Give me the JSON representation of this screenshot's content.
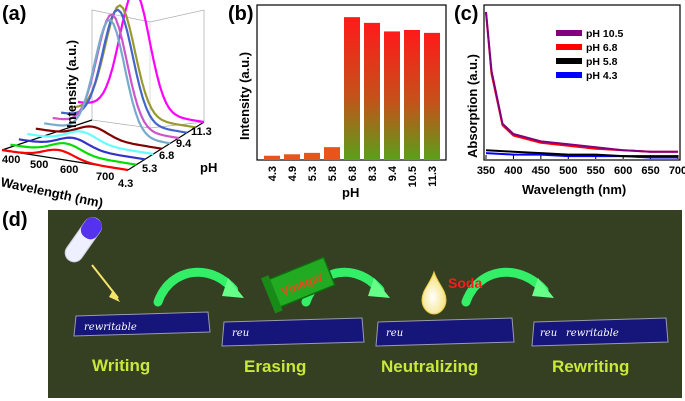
{
  "panels": {
    "a": "(a)",
    "b": "(b)",
    "c": "(c)",
    "d": "(d)"
  },
  "chart_data": [
    {
      "panel": "(a)",
      "type": "line",
      "view": "3d-waterfall",
      "xlabel": "Wavelength (nm)",
      "ylabel": "Intensity (a.u.)",
      "zlabel": "pH",
      "x_ticks": [
        "400",
        "500",
        "600",
        "700"
      ],
      "z_ticks": [
        "4.3",
        "5.3",
        "6.8",
        "9.4",
        "11.3"
      ],
      "series_colors": [
        "#ff00ff",
        "#999933",
        "#4466cc",
        "#cc55cc",
        "#77aacc",
        "#800000",
        "#66ffff",
        "#3333cc",
        "#00dd00",
        "#ff0000"
      ],
      "front_peak_rel": [
        0.1,
        0.1,
        0.09,
        0.09,
        0.08
      ],
      "back_peak_rel": [
        1.0,
        0.96,
        0.98,
        0.99,
        0.99
      ]
    },
    {
      "panel": "(b)",
      "type": "bar",
      "xlabel": "pH",
      "ylabel": "Intensity (a.u.)",
      "categories": [
        "4.3",
        "4.9",
        "5.3",
        "5.8",
        "6.8",
        "8.3",
        "9.4",
        "10.5",
        "11.3"
      ],
      "values": [
        3,
        4,
        5,
        9,
        100,
        96,
        90,
        91,
        89
      ],
      "ylim": [
        0,
        105
      ],
      "colors": {
        "top": "#ff1a1a",
        "bottom": "#5aa01a",
        "low": "#e8541a"
      }
    },
    {
      "panel": "(c)",
      "type": "line",
      "xlabel": "Wavelength (nm)",
      "ylabel": "Absorption (a.u.)",
      "xlim": [
        350,
        700
      ],
      "ylim": [
        0,
        1
      ],
      "x_ticks": [
        "350",
        "400",
        "450",
        "500",
        "550",
        "600",
        "650",
        "700"
      ],
      "legend": "top-right",
      "series": [
        {
          "name": "pH 10.5",
          "color": "#800080",
          "x": [
            350,
            360,
            380,
            400,
            450,
            500,
            550,
            600,
            650,
            700
          ],
          "y": [
            1.0,
            0.6,
            0.24,
            0.17,
            0.12,
            0.1,
            0.08,
            0.06,
            0.05,
            0.05
          ]
        },
        {
          "name": "pH 6.8",
          "color": "#ff0000",
          "x": [
            350,
            360,
            380,
            400,
            450,
            500,
            550,
            600,
            650,
            700
          ],
          "y": [
            1.0,
            0.58,
            0.23,
            0.16,
            0.11,
            0.09,
            0.07,
            0.06,
            0.05,
            0.05
          ]
        },
        {
          "name": "pH 5.8",
          "color": "#000000",
          "x": [
            350,
            400,
            450,
            500,
            550,
            600,
            650,
            700
          ],
          "y": [
            0.06,
            0.05,
            0.04,
            0.03,
            0.03,
            0.02,
            0.02,
            0.02
          ]
        },
        {
          "name": "pH 4.3",
          "color": "#0000ff",
          "x": [
            350,
            400,
            450,
            500,
            550,
            600,
            650,
            700
          ],
          "y": [
            0.04,
            0.03,
            0.03,
            0.02,
            0.02,
            0.02,
            0.01,
            0.01
          ]
        }
      ]
    }
  ],
  "panel_d": {
    "steps": [
      "Writing",
      "Erasing",
      "Neutralizing",
      "Rewriting"
    ],
    "strip_texts": [
      "rewritable",
      "reu",
      "reu",
      "reu",
      "rewritable"
    ],
    "vinegar_label": "Vinegar",
    "soda_label": "Soda",
    "colors": {
      "background": "#353f22",
      "step_text": "#c8e83a",
      "arrow": "#33ee66",
      "strip": "#15157a",
      "soda": "#ff1a1a",
      "vinegar": "#e84b1a"
    }
  }
}
